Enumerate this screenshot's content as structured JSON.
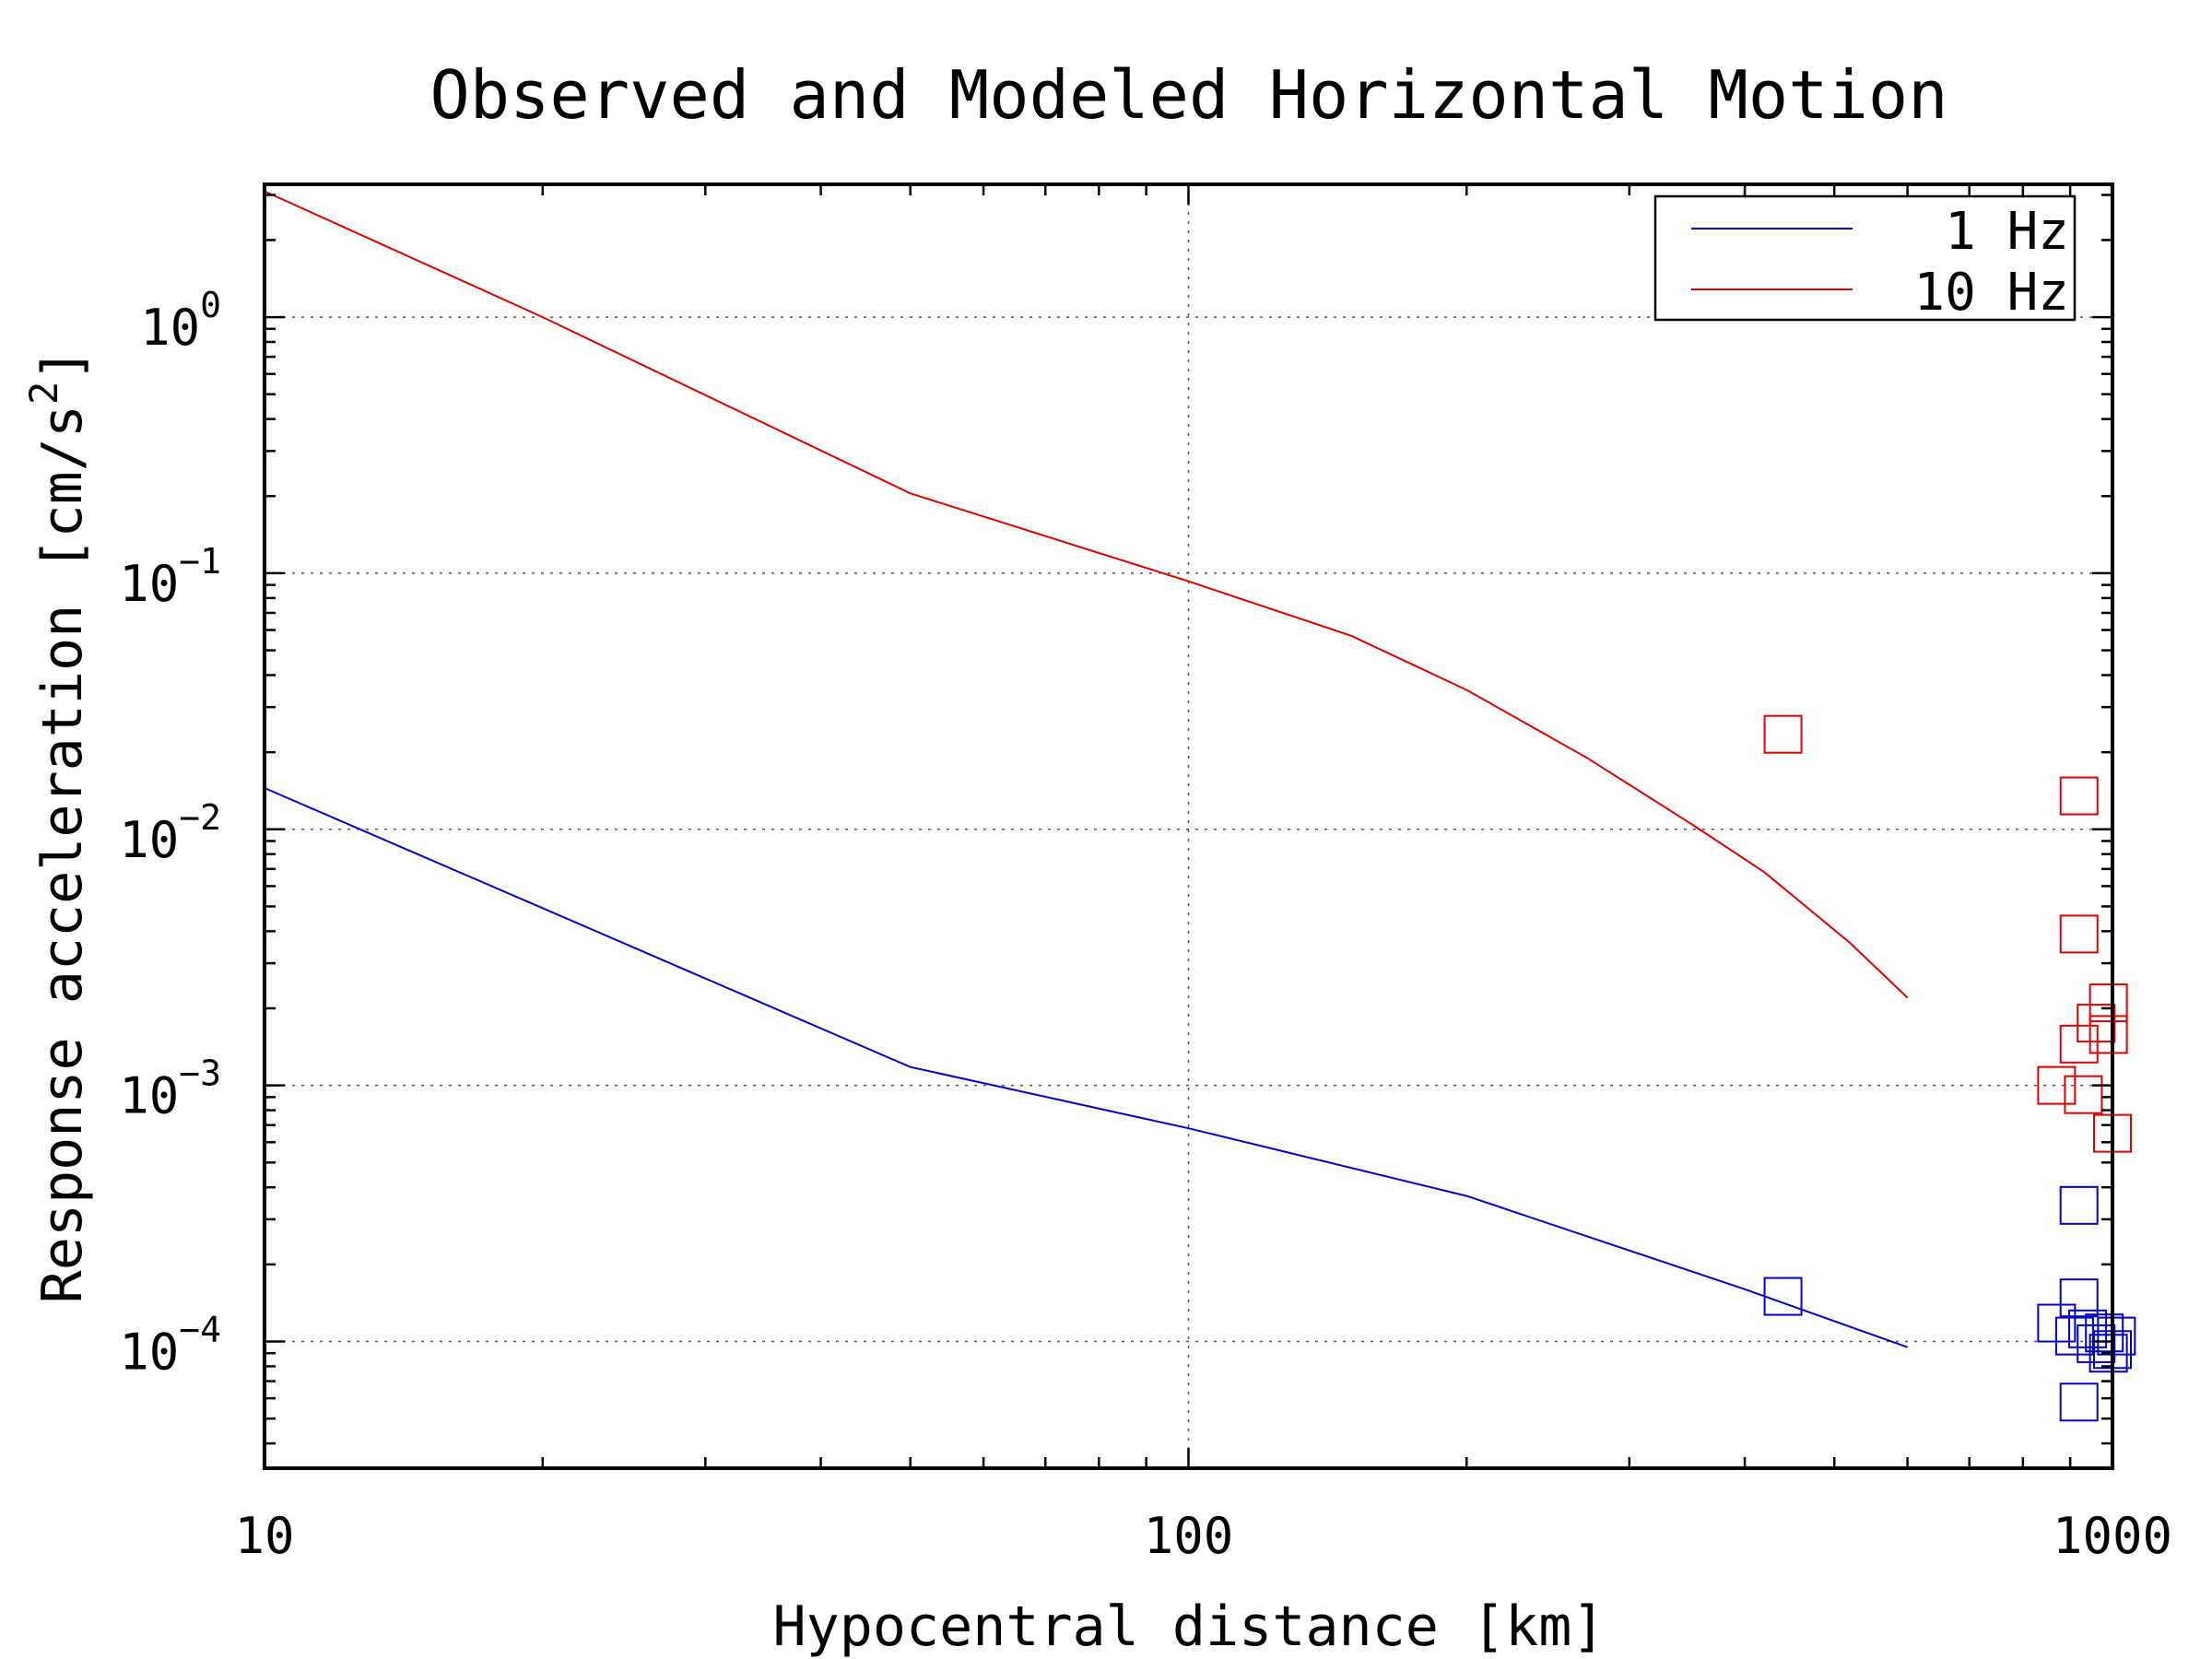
{
  "chart_data": {
    "type": "line",
    "title": "Observed and Modeled Horizontal Motion",
    "xlabel": "Hypocentral distance [km]",
    "ylabel": "Response acceleration [cm/s",
    "ylabel_sup": "2",
    "ylabel_end": "]",
    "xscale": "log",
    "yscale": "log",
    "xlim": [
      10,
      1000
    ],
    "ylim": [
      3.2e-05,
      3.3
    ],
    "grid": true,
    "x_ticks": [
      {
        "value": 10,
        "label": "10"
      },
      {
        "value": 100,
        "label": "100"
      },
      {
        "value": 1000,
        "label": "1000"
      }
    ],
    "y_ticks": [
      {
        "value": 1,
        "base": "10",
        "exp": "0"
      },
      {
        "value": 0.1,
        "base": "10",
        "exp": "−1"
      },
      {
        "value": 0.01,
        "base": "10",
        "exp": "−2"
      },
      {
        "value": 0.001,
        "base": "10",
        "exp": "−3"
      },
      {
        "value": 0.0001,
        "base": "10",
        "exp": "−4"
      }
    ],
    "legend": {
      "placement": "top-right",
      "entries": [
        {
          "label": "1 Hz",
          "color": "#0000cc"
        },
        {
          "label": "10 Hz",
          "color": "#dd0000"
        }
      ]
    },
    "series": [
      {
        "name": "1 Hz",
        "color": "#0000cc",
        "line": [
          {
            "x": 10,
            "y": 0.0145
          },
          {
            "x": 50,
            "y": 0.00118
          },
          {
            "x": 100,
            "y": 0.00068
          },
          {
            "x": 200,
            "y": 0.00037
          },
          {
            "x": 400,
            "y": 0.00016
          },
          {
            "x": 600,
            "y": 9.5e-05
          }
        ],
        "observed": [
          {
            "x": 440,
            "y": 0.00015
          },
          {
            "x": 920,
            "y": 0.00034
          },
          {
            "x": 920,
            "y": 0.000148
          },
          {
            "x": 870,
            "y": 0.000118
          },
          {
            "x": 910,
            "y": 0.000105
          },
          {
            "x": 940,
            "y": 0.000112
          },
          {
            "x": 960,
            "y": 9.8e-05
          },
          {
            "x": 980,
            "y": 0.000108
          },
          {
            "x": 1010,
            "y": 0.000105
          },
          {
            "x": 990,
            "y": 9e-05
          },
          {
            "x": 1000,
            "y": 9.3e-05
          },
          {
            "x": 920,
            "y": 5.8e-05
          }
        ]
      },
      {
        "name": "10 Hz",
        "color": "#dd0000",
        "line": [
          {
            "x": 10,
            "y": 3.1
          },
          {
            "x": 20,
            "y": 1.0
          },
          {
            "x": 50,
            "y": 0.205
          },
          {
            "x": 100,
            "y": 0.093
          },
          {
            "x": 150,
            "y": 0.057
          },
          {
            "x": 200,
            "y": 0.035
          },
          {
            "x": 270,
            "y": 0.019
          },
          {
            "x": 350,
            "y": 0.0105
          },
          {
            "x": 420,
            "y": 0.0068
          },
          {
            "x": 520,
            "y": 0.0036
          },
          {
            "x": 600,
            "y": 0.0022
          }
        ],
        "observed": [
          {
            "x": 440,
            "y": 0.0235
          },
          {
            "x": 920,
            "y": 0.0135
          },
          {
            "x": 920,
            "y": 0.0039
          },
          {
            "x": 990,
            "y": 0.0021
          },
          {
            "x": 960,
            "y": 0.00175
          },
          {
            "x": 990,
            "y": 0.00158
          },
          {
            "x": 920,
            "y": 0.00145
          },
          {
            "x": 870,
            "y": 0.001
          },
          {
            "x": 930,
            "y": 0.00092
          },
          {
            "x": 1000,
            "y": 0.00065
          }
        ]
      }
    ]
  }
}
